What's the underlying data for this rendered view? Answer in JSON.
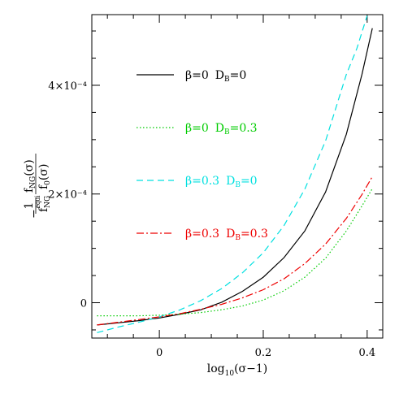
{
  "chart_data": {
    "type": "line",
    "title": "",
    "xlabel": {
      "base": "log",
      "sub": "10",
      "rest": "(σ−1)"
    },
    "ylabel": {
      "prefix": "−",
      "one": "1",
      "den1_main": "f",
      "den1_sub": "NG",
      "den1_sup": "equi",
      "num2_main": "f",
      "num2_sub": "NG",
      "num2_rest": "(σ)",
      "den2_main": "f",
      "den2_sub": "0",
      "den2_rest": "(σ)"
    },
    "xlim": [
      -0.13,
      0.43
    ],
    "ylim": [
      -6.5e-05,
      0.00053
    ],
    "x_ticks": [
      {
        "value": 0,
        "label": "0"
      },
      {
        "value": 0.2,
        "label": "0.2"
      },
      {
        "value": 0.4,
        "label": "0.4"
      }
    ],
    "y_ticks": [
      {
        "value": 0,
        "label": "0"
      },
      {
        "value": 0.0002,
        "label": "2×10⁻⁴"
      },
      {
        "value": 0.0004,
        "label": "4×10⁻⁴"
      }
    ],
    "legend_placement": "top-left",
    "series": [
      {
        "name": "β=0 D_B=0",
        "label": {
          "beta": "β=0",
          "d": "D",
          "dsub": "B",
          "dval": "=0"
        },
        "color": "#000000",
        "dash": "solid",
        "x": [
          -0.12,
          -0.08,
          -0.04,
          0.0,
          0.04,
          0.08,
          0.12,
          0.16,
          0.2,
          0.24,
          0.28,
          0.32,
          0.36,
          0.39,
          0.41
        ],
        "y": [
          -4.1e-05,
          -3.7e-05,
          -3.3e-05,
          -2.8e-05,
          -2.1e-05,
          -1.3e-05,
          1e-06,
          2.1e-05,
          4.7e-05,
          8.3e-05,
          0.000132,
          0.000204,
          0.00031,
          0.00042,
          0.000505
        ]
      },
      {
        "name": "β=0 D_B=0.3",
        "label": {
          "beta": "β=0",
          "d": "D",
          "dsub": "B",
          "dval": "=0.3"
        },
        "color": "#00cc00",
        "dash": "dotted",
        "x": [
          -0.12,
          -0.08,
          -0.04,
          0.0,
          0.04,
          0.08,
          0.12,
          0.16,
          0.2,
          0.24,
          0.28,
          0.32,
          0.36,
          0.39,
          0.41
        ],
        "y": [
          -2.4e-05,
          -2.4e-05,
          -2.4e-05,
          -2.3e-05,
          -2.1e-05,
          -1.8e-05,
          -1.3e-05,
          -6e-06,
          5e-06,
          2.2e-05,
          4.7e-05,
          8.2e-05,
          0.000132,
          0.000178,
          0.00021
        ]
      },
      {
        "name": "β=0.3 D_B=0",
        "label": {
          "beta": "β=0.3",
          "d": "D",
          "dsub": "B",
          "dval": "=0"
        },
        "color": "#00e0e0",
        "dash": "dashed",
        "x": [
          -0.12,
          -0.08,
          -0.04,
          0.0,
          0.04,
          0.08,
          0.12,
          0.16,
          0.2,
          0.24,
          0.28,
          0.32,
          0.36,
          0.38,
          0.4
        ],
        "y": [
          -5.5e-05,
          -4.5e-05,
          -3.6e-05,
          -2.6e-05,
          -1.3e-05,
          4e-06,
          2.6e-05,
          5.5e-05,
          9.2e-05,
          0.000142,
          0.000209,
          0.000298,
          0.00042,
          0.000467,
          0.000528
        ]
      },
      {
        "name": "β=0.3 D_B=0.3",
        "label": {
          "beta": "β=0.3",
          "d": "D",
          "dsub": "B",
          "dval": "=0.3"
        },
        "color": "#ee0000",
        "dash": "dashdot",
        "x": [
          -0.12,
          -0.08,
          -0.04,
          0.0,
          0.04,
          0.08,
          0.12,
          0.16,
          0.2,
          0.24,
          0.28,
          0.32,
          0.36,
          0.39,
          0.41
        ],
        "y": [
          -4.1e-05,
          -3.6e-05,
          -3.1e-05,
          -2.6e-05,
          -2e-05,
          -1.2e-05,
          -3e-06,
          9e-06,
          2.4e-05,
          4.4e-05,
          7.2e-05,
          0.000108,
          0.000155,
          0.000199,
          0.000232
        ]
      }
    ]
  }
}
